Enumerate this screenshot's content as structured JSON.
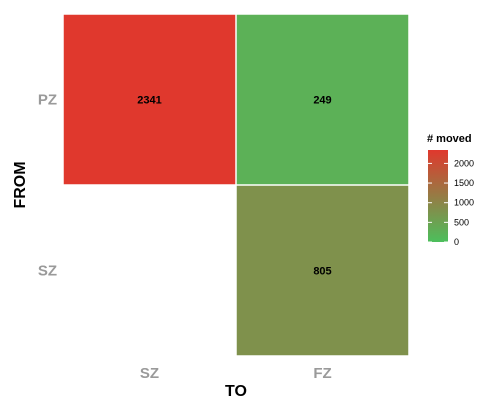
{
  "chart_data": {
    "type": "heatmap",
    "x_categories": [
      "SZ",
      "FZ"
    ],
    "y_categories": [
      "PZ",
      "SZ"
    ],
    "xlabel": "TO",
    "ylabel": "FROM",
    "cells": [
      {
        "from": "PZ",
        "to": "SZ",
        "value": 2341,
        "label": "2341"
      },
      {
        "from": "PZ",
        "to": "FZ",
        "value": 249,
        "label": "249"
      },
      {
        "from": "SZ",
        "to": "FZ",
        "value": 805,
        "label": "805"
      }
    ],
    "legend": {
      "title": "# moved",
      "placement": "right",
      "range": [
        0,
        2341
      ],
      "ticks": [
        2000,
        1500,
        1000,
        500,
        0
      ],
      "tick_labels": [
        "2000",
        "1500",
        "1000",
        "500",
        "0"
      ],
      "color_low": "#4cbf5c",
      "color_high": "#e0382d"
    }
  }
}
